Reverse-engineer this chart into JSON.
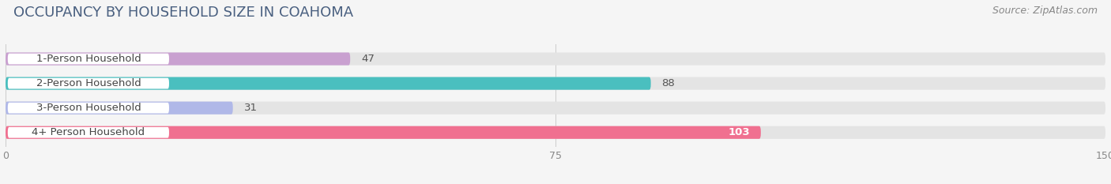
{
  "title": "OCCUPANCY BY HOUSEHOLD SIZE IN COAHOMA",
  "source": "Source: ZipAtlas.com",
  "categories": [
    "1-Person Household",
    "2-Person Household",
    "3-Person Household",
    "4+ Person Household"
  ],
  "values": [
    47,
    88,
    31,
    103
  ],
  "bar_colors": [
    "#c9a0d0",
    "#4abfbf",
    "#b0b8e8",
    "#f07090"
  ],
  "value_label_colors": [
    "#555555",
    "#555555",
    "#555555",
    "#ffffff"
  ],
  "xlim": [
    0,
    150
  ],
  "xticks": [
    0,
    75,
    150
  ],
  "background_color": "#f5f5f5",
  "bar_background_color": "#e4e4e4",
  "title_fontsize": 13,
  "source_fontsize": 9,
  "label_fontsize": 9.5,
  "value_fontsize": 9.5,
  "tick_fontsize": 9,
  "title_color": "#4a6080"
}
